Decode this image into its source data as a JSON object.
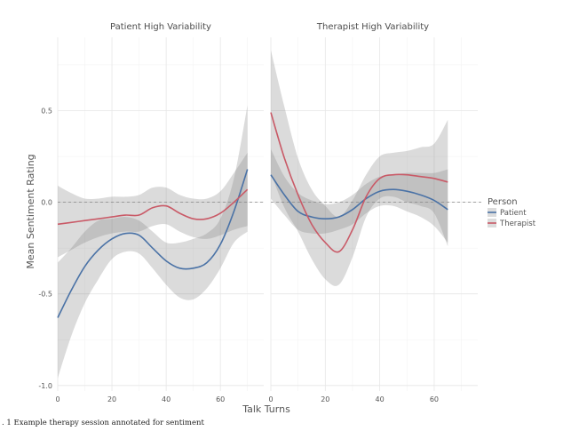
{
  "caption": ". 1  Example therapy session annotated for sentiment",
  "legend": {
    "title": "Person",
    "items": [
      {
        "label": "Patient",
        "color": "#4a72a6"
      },
      {
        "label": "Therapist",
        "color": "#c95a67"
      }
    ]
  },
  "chart_data": [
    {
      "type": "line",
      "title": "Patient High Variability",
      "xlabel": "Talk Turns",
      "ylabel": "Mean Sentiment Rating",
      "xlim": [
        0,
        76
      ],
      "ylim": [
        -1.03,
        0.9
      ],
      "x_ticks": [
        0,
        20,
        40,
        60
      ],
      "y_ticks": [
        -1.0,
        -0.5,
        0.0,
        0.5
      ],
      "y_tick_labels": [
        "-1.0",
        "-0.5",
        "0.0",
        "0.5"
      ],
      "reference_line": 0,
      "grid": true,
      "series": [
        {
          "name": "Patient",
          "color": "#4a72a6",
          "x": [
            0,
            5,
            10,
            15,
            20,
            25,
            30,
            35,
            40,
            45,
            50,
            55,
            60,
            65,
            70
          ],
          "y": [
            -0.63,
            -0.48,
            -0.35,
            -0.26,
            -0.2,
            -0.17,
            -0.18,
            -0.25,
            -0.32,
            -0.36,
            -0.36,
            -0.33,
            -0.23,
            -0.05,
            0.18
          ],
          "ci_low": [
            -0.96,
            -0.73,
            -0.55,
            -0.42,
            -0.31,
            -0.27,
            -0.28,
            -0.36,
            -0.45,
            -0.52,
            -0.53,
            -0.47,
            -0.36,
            -0.22,
            -0.16
          ],
          "ci_high": [
            -0.33,
            -0.25,
            -0.16,
            -0.1,
            -0.09,
            -0.08,
            -0.1,
            -0.16,
            -0.22,
            -0.22,
            -0.2,
            -0.17,
            -0.09,
            0.13,
            0.53
          ]
        },
        {
          "name": "Therapist",
          "color": "#c95a67",
          "x": [
            0,
            5,
            10,
            15,
            20,
            25,
            30,
            35,
            40,
            45,
            50,
            55,
            60,
            65,
            70
          ],
          "y": [
            -0.12,
            -0.11,
            -0.1,
            -0.09,
            -0.08,
            -0.07,
            -0.07,
            -0.03,
            -0.02,
            -0.06,
            -0.09,
            -0.09,
            -0.06,
            0.0,
            0.07
          ],
          "ci_low": [
            -0.3,
            -0.26,
            -0.22,
            -0.19,
            -0.17,
            -0.16,
            -0.16,
            -0.13,
            -0.12,
            -0.16,
            -0.19,
            -0.2,
            -0.18,
            -0.15,
            -0.13
          ],
          "ci_high": [
            0.09,
            0.05,
            0.02,
            0.02,
            0.03,
            0.03,
            0.04,
            0.08,
            0.08,
            0.04,
            0.02,
            0.02,
            0.06,
            0.16,
            0.27
          ]
        }
      ]
    },
    {
      "type": "line",
      "title": "Therapist High Variability",
      "xlabel": "Talk Turns",
      "ylabel": "Mean Sentiment Rating",
      "xlim": [
        0,
        76
      ],
      "ylim": [
        -1.03,
        0.9
      ],
      "x_ticks": [
        0,
        20,
        40,
        60
      ],
      "y_ticks": [
        -1.0,
        -0.5,
        0.0,
        0.5
      ],
      "y_tick_labels": [
        "-1.0",
        "-0.5",
        "0.0",
        "0.5"
      ],
      "reference_line": 0,
      "grid": true,
      "series": [
        {
          "name": "Patient",
          "color": "#4a72a6",
          "x": [
            0,
            5,
            10,
            15,
            20,
            25,
            30,
            35,
            40,
            45,
            50,
            55,
            60,
            65
          ],
          "y": [
            0.15,
            0.04,
            -0.05,
            -0.08,
            -0.09,
            -0.08,
            -0.04,
            0.02,
            0.06,
            0.07,
            0.06,
            0.04,
            0.01,
            -0.04
          ],
          "ci_low": [
            0.02,
            -0.07,
            -0.15,
            -0.17,
            -0.17,
            -0.15,
            -0.12,
            -0.06,
            -0.02,
            -0.02,
            -0.05,
            -0.08,
            -0.13,
            -0.22
          ],
          "ci_high": [
            0.29,
            0.14,
            0.05,
            0.01,
            -0.01,
            0.0,
            0.04,
            0.1,
            0.14,
            0.15,
            0.16,
            0.16,
            0.16,
            0.18
          ]
        },
        {
          "name": "Therapist",
          "color": "#c95a67",
          "x": [
            0,
            5,
            10,
            15,
            20,
            25,
            30,
            35,
            40,
            45,
            50,
            55,
            60,
            65
          ],
          "y": [
            0.49,
            0.24,
            0.04,
            -0.12,
            -0.22,
            -0.27,
            -0.15,
            0.03,
            0.13,
            0.15,
            0.15,
            0.14,
            0.13,
            0.11
          ],
          "ci_low": [
            0.16,
            -0.03,
            -0.16,
            -0.31,
            -0.42,
            -0.45,
            -0.3,
            -0.08,
            0.02,
            0.03,
            0.0,
            -0.02,
            -0.06,
            -0.24
          ],
          "ci_high": [
            0.83,
            0.52,
            0.24,
            0.07,
            -0.02,
            -0.08,
            0.01,
            0.15,
            0.25,
            0.27,
            0.28,
            0.3,
            0.32,
            0.45
          ]
        }
      ]
    }
  ]
}
